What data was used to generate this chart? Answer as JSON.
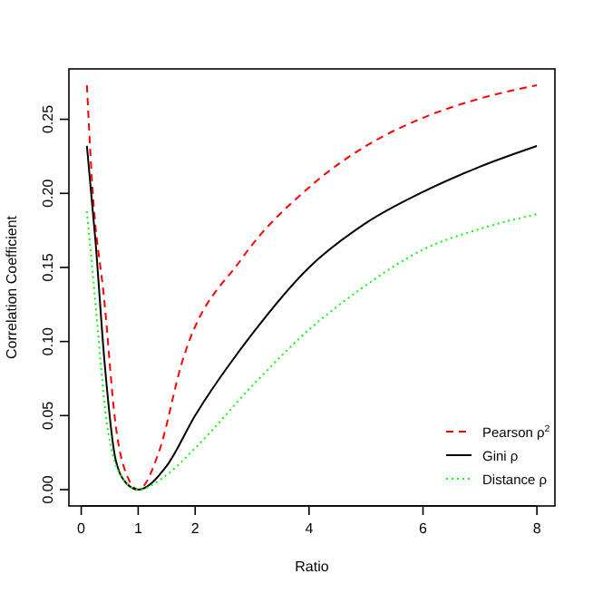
{
  "chart_data": {
    "type": "line",
    "xlabel": "Ratio",
    "ylabel": "Correlation Coefficient",
    "xlim": [
      -0.216,
      8.316
    ],
    "ylim": [
      -0.011,
      0.284
    ],
    "xticks": [
      0,
      1,
      2,
      4,
      6,
      8
    ],
    "yticks": [
      {
        "value": 0,
        "label": "0.00"
      },
      {
        "value": 0.05,
        "label": "0.05"
      },
      {
        "value": 0.1,
        "label": "0.10"
      },
      {
        "value": 0.15,
        "label": "0.15"
      },
      {
        "value": 0.2,
        "label": "0.20"
      },
      {
        "value": 0.25,
        "label": "0.25"
      }
    ],
    "grid": false,
    "legend": "bottom right",
    "marker": "none",
    "series": [
      {
        "name": "Pearson ρ$^{2}$",
        "color": "#ff0000",
        "line_style": "dashed",
        "x": [
          0.1,
          0.19,
          0.41,
          0.6,
          0.82,
          1,
          1.36,
          1.77,
          2.82,
          4,
          5,
          6,
          7,
          8
        ],
        "values": [
          0.273,
          0.208,
          0.126,
          0.045,
          0.008,
          0,
          0.025,
          0.086,
          0.156,
          0.204,
          0.232,
          0.251,
          0.264,
          0.273
        ]
      },
      {
        "name": "Gini ρ",
        "color": "#000000",
        "line_style": "solid",
        "x": [
          0.1,
          0.25,
          0.41,
          0.6,
          0.8,
          1,
          1.5,
          2,
          3,
          4,
          5,
          6,
          7,
          8
        ],
        "values": [
          0.232,
          0.168,
          0.086,
          0.021,
          0.004,
          0,
          0.016,
          0.05,
          0.105,
          0.15,
          0.18,
          0.201,
          0.218,
          0.232
        ]
      },
      {
        "name": "Distance ρ",
        "color": "#00ff00",
        "line_style": "dotted",
        "x": [
          0.1,
          0.25,
          0.45,
          0.72,
          1,
          1.5,
          2,
          3,
          4,
          5,
          6,
          7,
          8
        ],
        "values": [
          0.188,
          0.126,
          0.045,
          0.008,
          0,
          0.01,
          0.028,
          0.07,
          0.108,
          0.138,
          0.162,
          0.176,
          0.186
        ]
      }
    ]
  }
}
